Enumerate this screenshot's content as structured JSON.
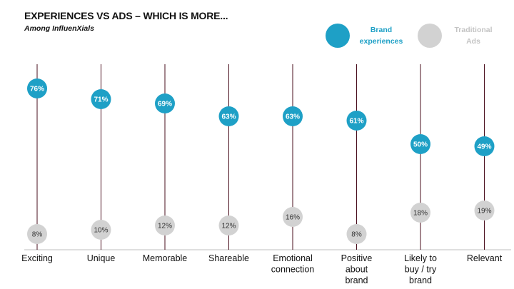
{
  "header": {
    "title": "EXPERIENCES VS ADS – WHICH IS MORE...",
    "subtitle": "Among InfluenXials"
  },
  "legend": [
    {
      "label_lines": [
        "Brand",
        "experiences"
      ],
      "color": "#1ea0c6"
    },
    {
      "label_lines": [
        "Traditional",
        "Ads"
      ],
      "color": "#d2d2d2"
    }
  ],
  "colors": {
    "brand": "#1ea0c6",
    "ads": "#d2d2d2",
    "stem": "#4a0f1e",
    "axis": "#bfbfbf"
  },
  "chart_data": {
    "type": "dot-plot",
    "categories": [
      [
        "Exciting"
      ],
      [
        "Unique"
      ],
      [
        "Memorable"
      ],
      [
        "Shareable"
      ],
      [
        "Emotional",
        "connection"
      ],
      [
        "Positive",
        "about",
        "brand"
      ],
      [
        "Likely to",
        "buy / try",
        "brand"
      ],
      [
        "Relevant"
      ]
    ],
    "series": [
      {
        "name": "Brand experiences",
        "values": [
          76,
          71,
          69,
          63,
          63,
          61,
          50,
          49
        ]
      },
      {
        "name": "Traditional Ads",
        "values": [
          8,
          10,
          12,
          12,
          16,
          8,
          18,
          19
        ]
      }
    ],
    "unit": "%"
  }
}
